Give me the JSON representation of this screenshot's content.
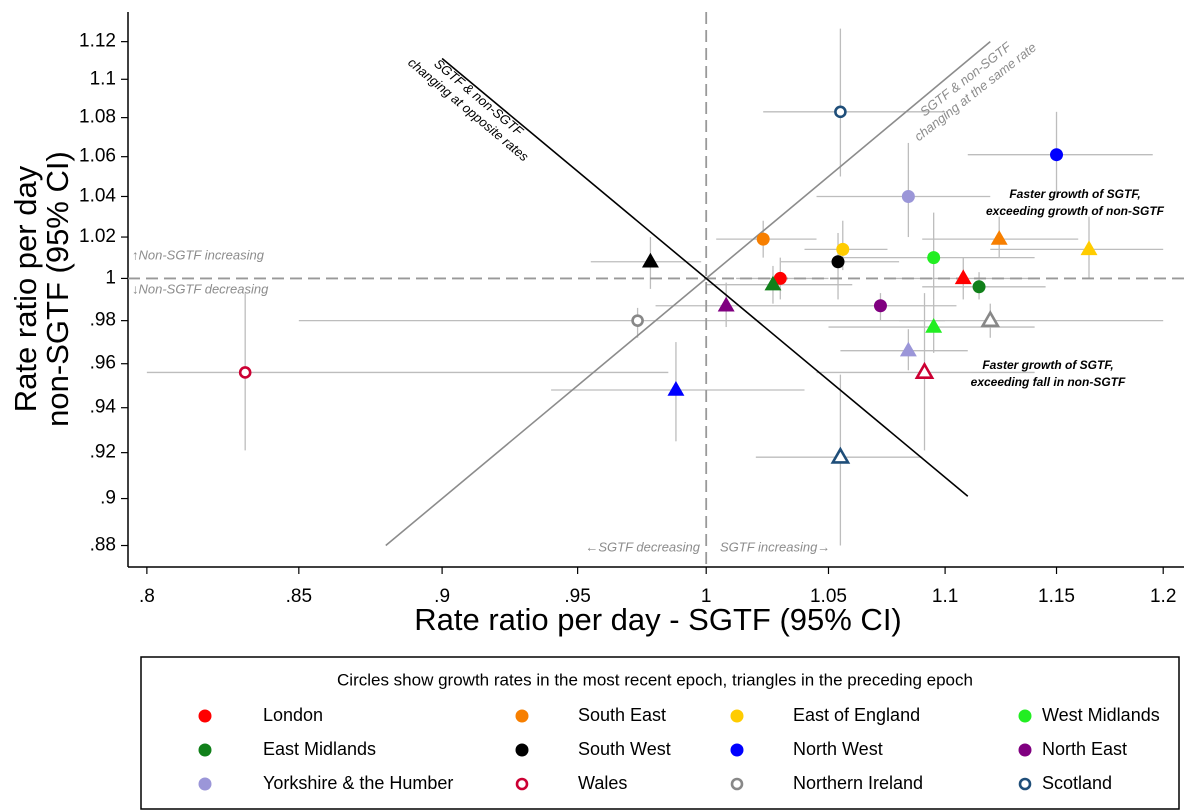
{
  "chart_data": {
    "type": "scatter",
    "xlabel": "Rate ratio per day - SGTF (95% CI)",
    "ylabel": [
      "Rate ratio per day",
      "non-SGTF (95% CI)"
    ],
    "log_x": true,
    "log_y": true,
    "xlim": [
      0.794,
      1.21
    ],
    "ylim": [
      0.871,
      1.136
    ],
    "xticks": [
      {
        "value": 0.8,
        "label": ".8"
      },
      {
        "value": 0.85,
        "label": ".85"
      },
      {
        "value": 0.9,
        "label": ".9"
      },
      {
        "value": 0.95,
        "label": ".95"
      },
      1,
      1.05,
      1.1,
      1.15,
      1.2
    ],
    "yticks": [
      {
        "value": 0.88,
        "label": ".88"
      },
      {
        "value": 0.9,
        "label": ".9"
      },
      {
        "value": 0.92,
        "label": ".92"
      },
      {
        "value": 0.94,
        "label": ".94"
      },
      {
        "value": 0.96,
        "label": ".96"
      },
      {
        "value": 0.98,
        "label": ".98"
      },
      1,
      1.02,
      1.04,
      1.06,
      1.08,
      1.1,
      1.12
    ],
    "vline": 1,
    "hline": 1,
    "point_markers": [
      "circle",
      "triangle"
    ],
    "reference_lines": [
      {
        "x": [
          0.88,
          1.12
        ],
        "y": [
          0.88,
          1.12
        ],
        "color": "#8c8c8c"
      },
      {
        "x": [
          0.9,
          1.11
        ],
        "y": [
          1.111,
          0.901
        ],
        "color": "#000000"
      }
    ],
    "annotations": [
      {
        "lines": [
          "SGTF & non-SGTF",
          "changing at opposite rates"
        ]
      },
      {
        "lines": [
          "SGTF & non-SGTF",
          "changing at the same rate"
        ]
      },
      {
        "lines": [
          "↑Non-SGTF increasing"
        ]
      },
      {
        "lines": [
          "↓Non-SGTF decreasing"
        ]
      },
      {
        "lines": [
          "←SGTF decreasing"
        ]
      },
      {
        "lines": [
          "SGTF increasing→"
        ]
      },
      {
        "lines": [
          "Faster growth of SGTF,",
          "exceeding  growth of non-SGTF"
        ]
      },
      {
        "lines": [
          "Faster growth of SGTF,",
          "exceeding  fall in non-SGTF"
        ]
      }
    ],
    "legend_title": "Circles show growth rates in the most recent epoch, triangles in the preceding epoch",
    "series": [
      {
        "name": "London",
        "color": "#ff0000",
        "hollow": false,
        "x": [
          1.03,
          1.108
        ],
        "y": [
          1.0,
          1.0
        ],
        "x_low": [
          1.012,
          1.075
        ],
        "x_high": [
          1.05,
          1.14
        ],
        "y_low": [
          0.99,
          0.99
        ],
        "y_high": [
          1.01,
          1.01
        ]
      },
      {
        "name": "South East",
        "color": "#f77f00",
        "hollow": false,
        "x": [
          1.023,
          1.124
        ],
        "y": [
          1.019,
          1.019
        ],
        "x_low": [
          1.004,
          1.09
        ],
        "x_high": [
          1.045,
          1.16
        ],
        "y_low": [
          1.01,
          1.01
        ],
        "y_high": [
          1.028,
          1.03
        ]
      },
      {
        "name": "East of England",
        "color": "#ffcc00",
        "hollow": false,
        "x": [
          1.056,
          1.165
        ],
        "y": [
          1.014,
          1.014
        ],
        "x_low": [
          1.04,
          1.12
        ],
        "x_high": [
          1.075,
          1.2
        ],
        "y_low": [
          1.004,
          1.0
        ],
        "y_high": [
          1.028,
          1.03
        ]
      },
      {
        "name": "West Midlands",
        "color": "#22ee22",
        "hollow": false,
        "x": [
          1.095,
          1.095
        ],
        "y": [
          1.01,
          0.977
        ],
        "x_low": [
          1.055,
          1.05
        ],
        "x_high": [
          1.14,
          1.14
        ],
        "y_low": [
          0.99,
          0.965
        ],
        "y_high": [
          1.032,
          0.99
        ]
      },
      {
        "name": "East Midlands",
        "color": "#11801a",
        "hollow": false,
        "x": [
          1.115,
          1.027
        ],
        "y": [
          0.996,
          0.997
        ],
        "x_low": [
          1.09,
          1.0
        ],
        "x_high": [
          1.145,
          1.06
        ],
        "y_low": [
          0.99,
          0.988
        ],
        "y_high": [
          1.003,
          1.006
        ]
      },
      {
        "name": "South West",
        "color": "#000000",
        "hollow": false,
        "x": [
          1.054,
          0.978
        ],
        "y": [
          1.008,
          1.008
        ],
        "x_low": [
          1.03,
          0.955
        ],
        "x_high": [
          1.08,
          0.998
        ],
        "y_low": [
          0.99,
          0.995
        ],
        "y_high": [
          1.022,
          1.02
        ]
      },
      {
        "name": "North West",
        "color": "#0000ff",
        "hollow": false,
        "x": [
          1.15,
          0.988
        ],
        "y": [
          1.061,
          0.948
        ],
        "x_low": [
          1.11,
          0.94
        ],
        "x_high": [
          1.195,
          1.04
        ],
        "y_low": [
          1.04,
          0.925
        ],
        "y_high": [
          1.083,
          0.97
        ]
      },
      {
        "name": "North East",
        "color": "#800080",
        "hollow": false,
        "x": [
          1.072,
          1.008
        ],
        "y": [
          0.987,
          0.987
        ],
        "x_low": [
          1.04,
          0.98
        ],
        "x_high": [
          1.105,
          1.04
        ],
        "y_low": [
          0.98,
          0.977
        ],
        "y_high": [
          0.993,
          0.998
        ]
      },
      {
        "name": "Yorkshire & the Humber",
        "color": "#9b96d8",
        "hollow": false,
        "x": [
          1.084,
          1.084
        ],
        "y": [
          1.04,
          0.966
        ],
        "x_low": [
          1.045,
          1.055
        ],
        "x_high": [
          1.12,
          1.11
        ],
        "y_low": [
          1.02,
          0.957
        ],
        "y_high": [
          1.067,
          0.976
        ]
      },
      {
        "name": "Wales",
        "color": "#cc0033",
        "hollow": true,
        "x": [
          0.832,
          1.091
        ],
        "y": [
          0.956,
          0.956
        ],
        "x_low": [
          0.8,
          1.045
        ],
        "x_high": [
          0.985,
          1.14
        ],
        "y_low": [
          0.921,
          0.921
        ],
        "y_high": [
          0.993,
          0.993
        ]
      },
      {
        "name": "Northern Ireland",
        "color": "#888888",
        "hollow": true,
        "x": [
          0.973,
          1.12
        ],
        "y": [
          0.98,
          0.98
        ],
        "x_low": [
          0.85,
          1.08
        ],
        "x_high": [
          1.1,
          1.2
        ],
        "y_low": [
          0.972,
          0.972
        ],
        "y_high": [
          0.986,
          0.988
        ]
      },
      {
        "name": "Scotland",
        "color": "#1f4e79",
        "hollow": true,
        "x": [
          1.055,
          1.055
        ],
        "y": [
          1.083,
          0.918
        ],
        "x_low": [
          1.023,
          1.02
        ],
        "x_high": [
          1.1,
          1.09
        ],
        "y_low": [
          1.05,
          0.88
        ],
        "y_high": [
          1.127,
          0.955
        ]
      }
    ]
  }
}
